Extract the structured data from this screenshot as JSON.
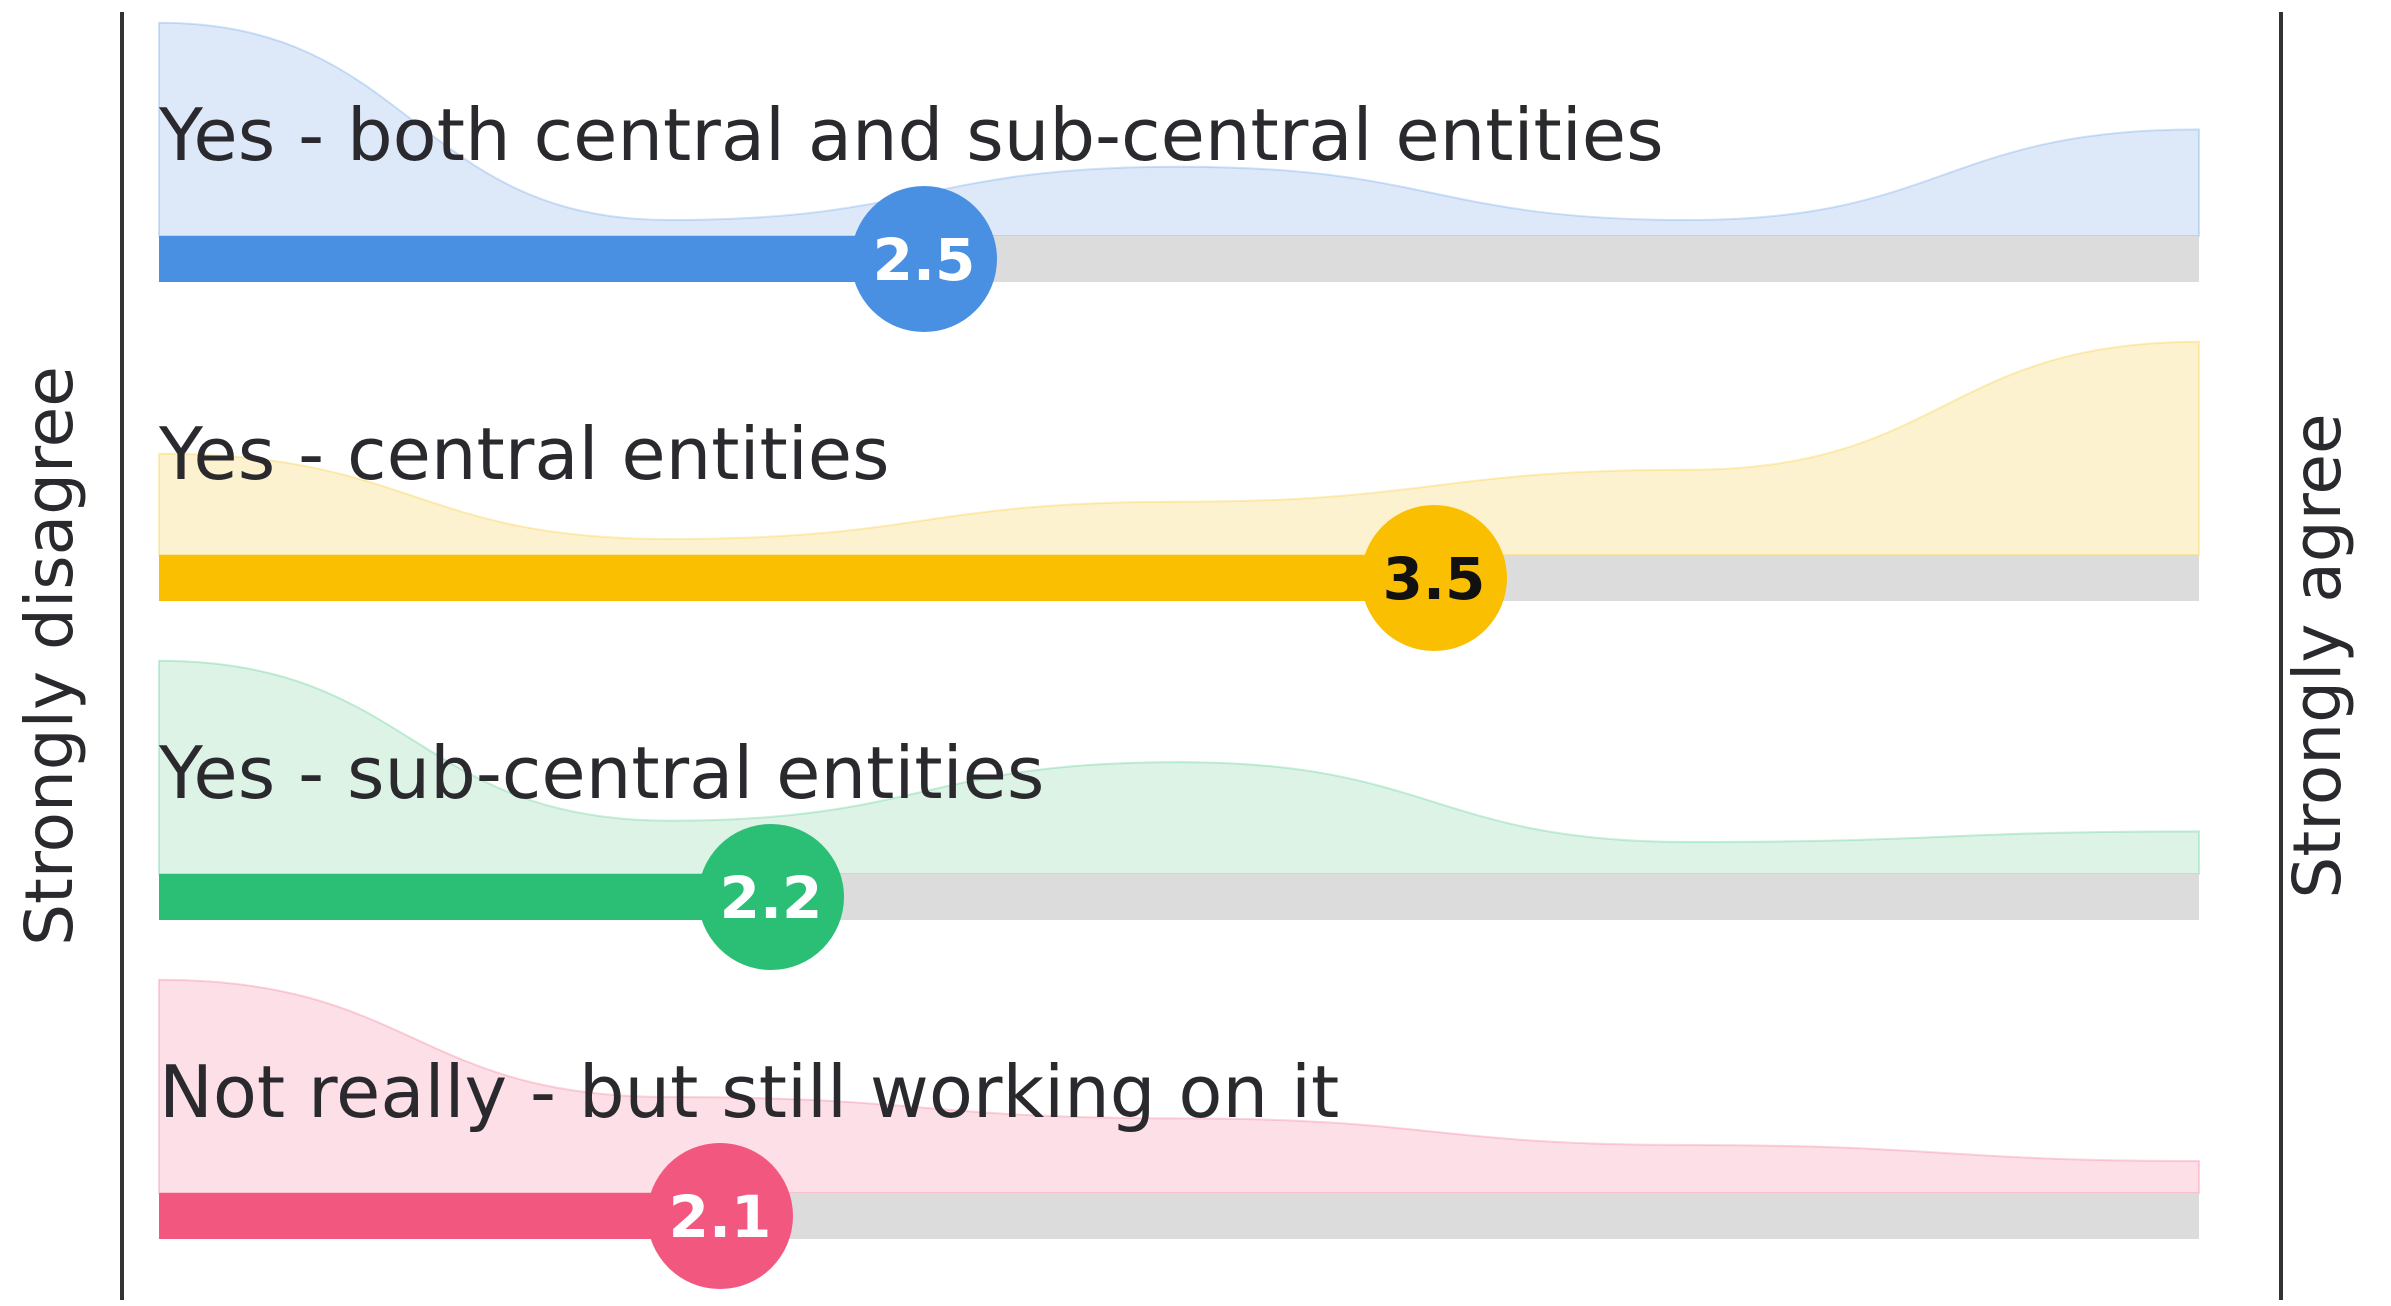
{
  "chart_data": {
    "type": "scale",
    "left_label": "Strongly disagree",
    "right_label": "Strongly agree",
    "xlim": [
      1,
      5
    ],
    "track_color": "#dcdcdc",
    "series": [
      {
        "name": "Yes - both central and sub-central entities",
        "value": 2.5,
        "color": "#4a90e2",
        "area_color": "#dde9f9",
        "text_color": "#ffffff",
        "distribution": [
          40,
          3,
          13,
          3,
          20
        ]
      },
      {
        "name": "Yes - central entities",
        "value": 3.5,
        "color": "#f9bf00",
        "area_color": "#fdf2cf",
        "text_color": "#111111",
        "distribution": [
          19,
          3,
          10,
          16,
          40
        ]
      },
      {
        "name": "Yes - sub-central entities",
        "value": 2.2,
        "color": "#2bbf75",
        "area_color": "#dcf3e6",
        "text_color": "#ffffff",
        "distribution": [
          40,
          10,
          21,
          6,
          8
        ]
      },
      {
        "name": "Not really - but still working on it",
        "value": 2.1,
        "color": "#f2577f",
        "area_color": "#fde0e7",
        "text_color": "#ffffff",
        "distribution": [
          40,
          18,
          14,
          9,
          6
        ]
      }
    ]
  }
}
